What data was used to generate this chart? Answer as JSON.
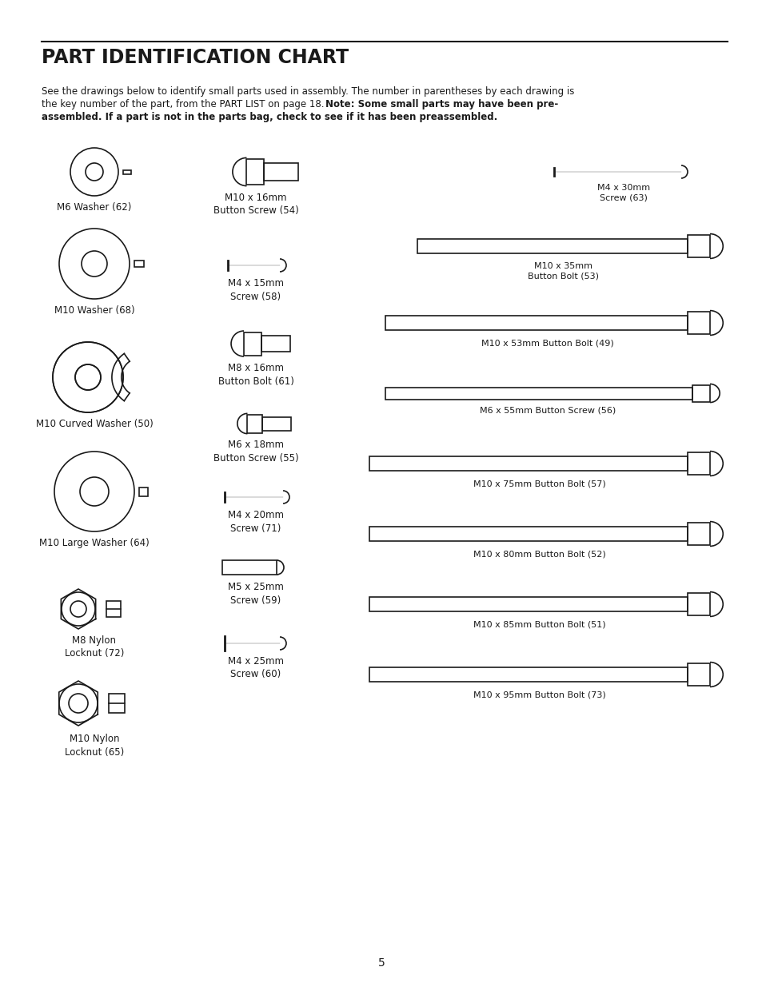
{
  "title": "PART IDENTIFICATION CHART",
  "page_number": "5",
  "bg_color": "#ffffff",
  "line_color": "#1a1a1a",
  "text_color": "#1a1a1a",
  "intro_line1": "See the drawings below to identify small parts used in assembly. The number in parentheses by each drawing is",
  "intro_line2": "the key number of the part, from the PART LIST on page 18. ",
  "intro_line2_bold": "Note: Some small parts may have been pre-",
  "intro_line3_bold": "assembled. If a part is not in the parts bag, check to see if it has been preassembled."
}
